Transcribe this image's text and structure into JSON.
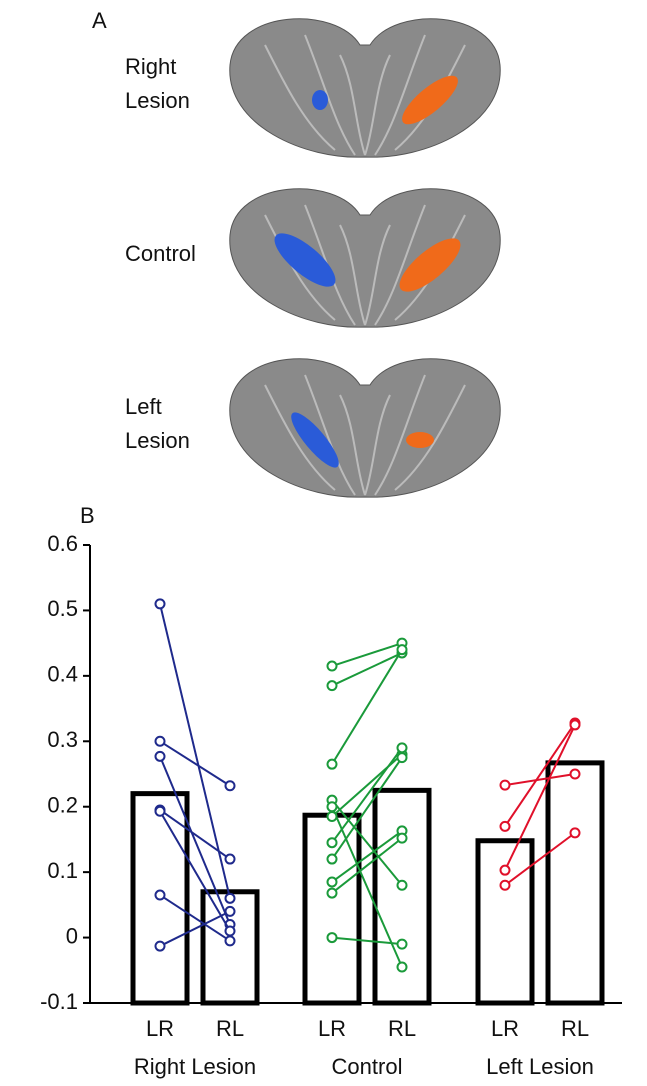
{
  "chart_data": {
    "type": "paired-bar",
    "panel_labels": [
      "A",
      "B"
    ],
    "brain_labels": [
      [
        "Right",
        "Lesion"
      ],
      [
        "Control"
      ],
      [
        "Left",
        "Lesion"
      ]
    ],
    "conditions": [
      "LR",
      "RL"
    ],
    "ylim": [
      -0.1,
      0.6
    ],
    "yticks": [
      -0.1,
      0,
      0.1,
      0.2,
      0.3,
      0.4,
      0.5,
      0.6
    ],
    "groups": [
      {
        "name": "Right Lesion",
        "color": "#1f2a8c",
        "bar_values": [
          0.22,
          0.07
        ],
        "LR": [
          0.51,
          0.3,
          0.277,
          0.195,
          0.193,
          0.065,
          -0.013
        ],
        "RL": [
          0.06,
          0.232,
          0.02,
          0.12,
          0.01,
          -0.005,
          0.04
        ]
      },
      {
        "name": "Control",
        "color": "#1a9a3a",
        "bar_values": [
          0.187,
          0.225
        ],
        "LR": [
          0.415,
          0.385,
          0.265,
          0.21,
          0.2,
          0.185,
          0.145,
          0.12,
          0.085,
          0.068,
          0.0
        ],
        "RL": [
          0.45,
          0.435,
          0.44,
          0.08,
          -0.045,
          0.28,
          0.29,
          0.275,
          0.163,
          0.152,
          -0.01
        ]
      },
      {
        "name": "Left Lesion",
        "color": "#e0102a",
        "bar_values": [
          0.148,
          0.267
        ],
        "LR": [
          0.233,
          0.17,
          0.103,
          0.08
        ],
        "RL": [
          0.25,
          0.328,
          0.325,
          0.16
        ]
      }
    ]
  }
}
